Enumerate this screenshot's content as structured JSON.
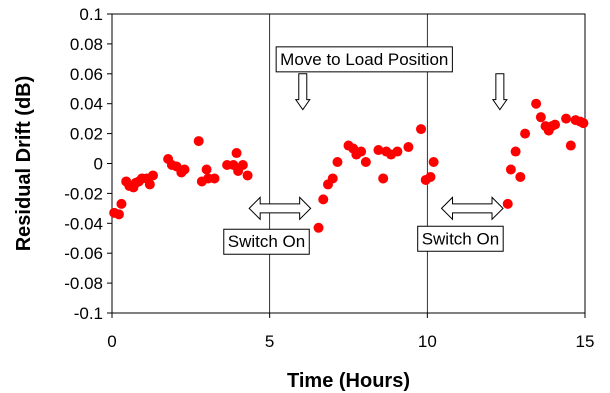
{
  "chart_data": {
    "type": "scatter",
    "title": "",
    "xlabel": "Time (Hours)",
    "ylabel": "Residual Drift (dB)",
    "xlim": [
      0,
      15
    ],
    "ylim": [
      -0.1,
      0.1
    ],
    "x_ticks": [
      0,
      5,
      10,
      15
    ],
    "x_tick_labels": [
      "0",
      "5",
      "10",
      "15"
    ],
    "y_ticks": [
      0.1,
      0.08,
      0.06,
      0.04,
      0.02,
      0,
      -0.02,
      -0.04,
      -0.06,
      -0.08,
      -0.1
    ],
    "y_tick_labels": [
      "0.1",
      "0.08",
      "0.06",
      "0.04",
      "0.02",
      "0",
      "-0.02",
      "-0.04",
      "-0.06",
      "-0.08",
      "-0.1"
    ],
    "grid": "vertical",
    "legend": "none",
    "marker_color": "#ff0000",
    "series": [
      {
        "points": [
          [
            0.07,
            -0.033
          ],
          [
            0.22,
            -0.034
          ],
          [
            0.3,
            -0.027
          ],
          [
            0.45,
            -0.012
          ],
          [
            0.55,
            -0.015
          ],
          [
            0.68,
            -0.016
          ],
          [
            0.75,
            -0.013
          ],
          [
            0.85,
            -0.012
          ],
          [
            0.95,
            -0.01
          ],
          [
            1.1,
            -0.01
          ],
          [
            1.2,
            -0.014
          ],
          [
            1.3,
            -0.008
          ],
          [
            1.78,
            0.003
          ],
          [
            1.9,
            -0.001
          ],
          [
            2.05,
            -0.002
          ],
          [
            2.2,
            -0.006
          ],
          [
            2.3,
            -0.004
          ],
          [
            2.75,
            0.015
          ],
          [
            2.85,
            -0.012
          ],
          [
            3.0,
            -0.004
          ],
          [
            3.05,
            -0.01
          ],
          [
            3.25,
            -0.01
          ],
          [
            3.65,
            -0.001
          ],
          [
            3.85,
            -0.001
          ],
          [
            3.95,
            0.007
          ],
          [
            4.0,
            -0.005
          ],
          [
            4.15,
            -0.001
          ],
          [
            4.3,
            -0.008
          ],
          [
            6.55,
            -0.043
          ],
          [
            6.7,
            -0.024
          ],
          [
            6.85,
            -0.014
          ],
          [
            7.0,
            -0.01
          ],
          [
            7.15,
            0.001
          ],
          [
            7.5,
            0.012
          ],
          [
            7.65,
            0.01
          ],
          [
            7.75,
            0.006
          ],
          [
            7.9,
            0.008
          ],
          [
            8.05,
            0.001
          ],
          [
            8.45,
            0.009
          ],
          [
            8.6,
            -0.01
          ],
          [
            8.7,
            0.008
          ],
          [
            8.85,
            0.006
          ],
          [
            9.05,
            0.008
          ],
          [
            9.4,
            0.011
          ],
          [
            9.8,
            0.023
          ],
          [
            9.95,
            -0.011
          ],
          [
            10.1,
            -0.009
          ],
          [
            10.2,
            0.001
          ],
          [
            12.55,
            -0.027
          ],
          [
            12.65,
            -0.004
          ],
          [
            12.8,
            0.008
          ],
          [
            12.95,
            -0.009
          ],
          [
            13.1,
            0.02
          ],
          [
            13.45,
            0.04
          ],
          [
            13.6,
            0.031
          ],
          [
            13.75,
            0.025
          ],
          [
            13.85,
            0.022
          ],
          [
            13.95,
            0.025
          ],
          [
            14.05,
            0.026
          ],
          [
            14.4,
            0.03
          ],
          [
            14.55,
            0.012
          ],
          [
            14.7,
            0.029
          ],
          [
            14.85,
            0.028
          ],
          [
            14.95,
            0.027
          ]
        ]
      }
    ],
    "annotations": [
      {
        "text": "Move to Load Position",
        "type": "label-box",
        "at": [
          8.0,
          0.07
        ]
      },
      {
        "text": "Switch On",
        "type": "label-box",
        "at": [
          4.9,
          -0.052
        ]
      },
      {
        "text": "Switch On",
        "type": "label-box",
        "at": [
          11.05,
          -0.05
        ]
      },
      {
        "type": "down-arrow",
        "at": [
          6.05,
          0.06
        ],
        "to": [
          6.05,
          0.036
        ]
      },
      {
        "type": "down-arrow",
        "at": [
          12.3,
          0.06
        ],
        "to": [
          12.3,
          0.036
        ]
      },
      {
        "type": "double-arrow",
        "from": [
          4.35,
          -0.03
        ],
        "to": [
          6.3,
          -0.03
        ]
      },
      {
        "type": "double-arrow",
        "from": [
          10.45,
          -0.03
        ],
        "to": [
          12.4,
          -0.03
        ]
      }
    ]
  }
}
